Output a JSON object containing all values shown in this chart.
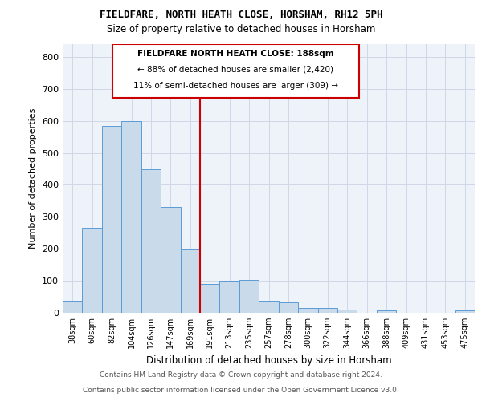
{
  "title": "FIELDFARE, NORTH HEATH CLOSE, HORSHAM, RH12 5PH",
  "subtitle": "Size of property relative to detached houses in Horsham",
  "xlabel": "Distribution of detached houses by size in Horsham",
  "ylabel": "Number of detached properties",
  "bar_labels": [
    "38sqm",
    "60sqm",
    "82sqm",
    "104sqm",
    "126sqm",
    "147sqm",
    "169sqm",
    "191sqm",
    "213sqm",
    "235sqm",
    "257sqm",
    "278sqm",
    "300sqm",
    "322sqm",
    "344sqm",
    "366sqm",
    "388sqm",
    "409sqm",
    "431sqm",
    "453sqm",
    "475sqm"
  ],
  "bar_values": [
    38,
    265,
    585,
    600,
    450,
    330,
    198,
    90,
    100,
    103,
    38,
    33,
    16,
    15,
    10,
    0,
    7,
    0,
    0,
    0,
    8
  ],
  "bar_color": "#c9daea",
  "bar_edge_color": "#5b9bd5",
  "grid_color": "#d0d8e8",
  "vline_x_index": 7,
  "vline_color": "#cc0000",
  "annotation_title": "FIELDFARE NORTH HEATH CLOSE: 188sqm",
  "annotation_line1": "← 88% of detached houses are smaller (2,420)",
  "annotation_line2": "11% of semi-detached houses are larger (309) →",
  "annotation_box_color": "#ffffff",
  "annotation_box_edge": "#cc0000",
  "ylim": [
    0,
    840
  ],
  "yticks": [
    0,
    100,
    200,
    300,
    400,
    500,
    600,
    700,
    800
  ],
  "footer1": "Contains HM Land Registry data © Crown copyright and database right 2024.",
  "footer2": "Contains public sector information licensed under the Open Government Licence v3.0.",
  "background_color": "#eef2f9",
  "fig_background": "#ffffff"
}
